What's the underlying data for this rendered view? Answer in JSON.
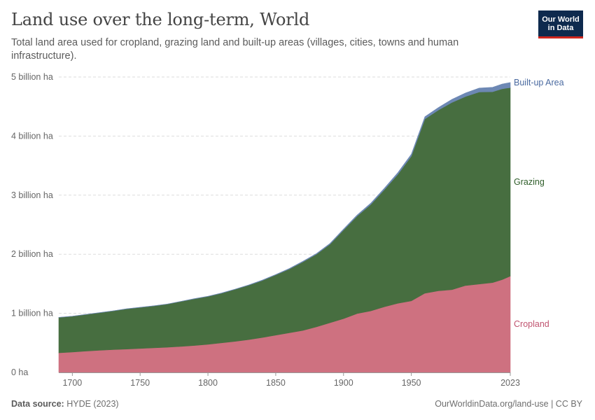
{
  "header": {
    "title": "Land use over the long-term, World",
    "subtitle": "Total land area used for cropland, grazing land and built-up areas (villages, cities, towns and human infrastructure)."
  },
  "logo": {
    "line1": "Our World",
    "line2": "in Data"
  },
  "footer": {
    "source_label": "Data source:",
    "source_value": "HYDE (2023)",
    "url": "OurWorldinData.org/land-use | CC BY"
  },
  "chart_data": {
    "type": "area",
    "stacked": true,
    "x_unit": "year",
    "y_unit": "ha",
    "ylim": [
      0,
      5000000000
    ],
    "xlim": [
      1690,
      2023
    ],
    "y_ticks": [
      {
        "value": 0,
        "label": "0 ha"
      },
      {
        "value": 1000000000,
        "label": "1 billion ha"
      },
      {
        "value": 2000000000,
        "label": "2 billion ha"
      },
      {
        "value": 3000000000,
        "label": "3 billion ha"
      },
      {
        "value": 4000000000,
        "label": "4 billion ha"
      },
      {
        "value": 5000000000,
        "label": "5 billion ha"
      }
    ],
    "x_ticks": [
      {
        "value": 1700,
        "label": "1700"
      },
      {
        "value": 1750,
        "label": "1750"
      },
      {
        "value": 1800,
        "label": "1800"
      },
      {
        "value": 1850,
        "label": "1850"
      },
      {
        "value": 1900,
        "label": "1900"
      },
      {
        "value": 1950,
        "label": "1950"
      },
      {
        "value": 2023,
        "label": "2023"
      }
    ],
    "grid": "horizontal-dashed",
    "legend": "direct labels at right",
    "x": [
      1690,
      1700,
      1710,
      1720,
      1730,
      1740,
      1750,
      1760,
      1770,
      1780,
      1790,
      1800,
      1810,
      1820,
      1830,
      1840,
      1850,
      1860,
      1870,
      1880,
      1890,
      1900,
      1910,
      1920,
      1930,
      1940,
      1950,
      1960,
      1970,
      1980,
      1990,
      2000,
      2010,
      2017,
      2020,
      2023
    ],
    "series": [
      {
        "name": "Cropland",
        "color": "#ce7180",
        "label_color": "#c05470",
        "values": [
          330000000,
          345000000,
          360000000,
          375000000,
          385000000,
          395000000,
          405000000,
          415000000,
          425000000,
          440000000,
          455000000,
          475000000,
          500000000,
          525000000,
          555000000,
          590000000,
          630000000,
          670000000,
          710000000,
          770000000,
          840000000,
          910000000,
          995000000,
          1040000000,
          1110000000,
          1170000000,
          1210000000,
          1340000000,
          1380000000,
          1400000000,
          1470000000,
          1495000000,
          1520000000,
          1570000000,
          1600000000,
          1630000000
        ]
      },
      {
        "name": "Grazing",
        "color": "#476e40",
        "label_color": "#2f5e2a",
        "values": [
          600000000,
          605000000,
          620000000,
          635000000,
          655000000,
          680000000,
          695000000,
          710000000,
          730000000,
          760000000,
          790000000,
          810000000,
          840000000,
          880000000,
          920000000,
          965000000,
          1020000000,
          1080000000,
          1160000000,
          1230000000,
          1330000000,
          1500000000,
          1650000000,
          1800000000,
          1980000000,
          2180000000,
          2450000000,
          2950000000,
          3060000000,
          3170000000,
          3200000000,
          3250000000,
          3230000000,
          3230000000,
          3210000000,
          3190000000
        ]
      },
      {
        "name": "Built-up Area",
        "color": "#6d88b4",
        "label_color": "#4a6aa0",
        "values": [
          2000000,
          2000000,
          2000000,
          2000000,
          2000000,
          2000000,
          3000000,
          3000000,
          3000000,
          3000000,
          4000000,
          4000000,
          5000000,
          5000000,
          6000000,
          7000000,
          8000000,
          9000000,
          10000000,
          12000000,
          14000000,
          16000000,
          19000000,
          22000000,
          25000000,
          29000000,
          33000000,
          38000000,
          44000000,
          52000000,
          60000000,
          68000000,
          76000000,
          82000000,
          84000000,
          86000000
        ]
      }
    ]
  }
}
